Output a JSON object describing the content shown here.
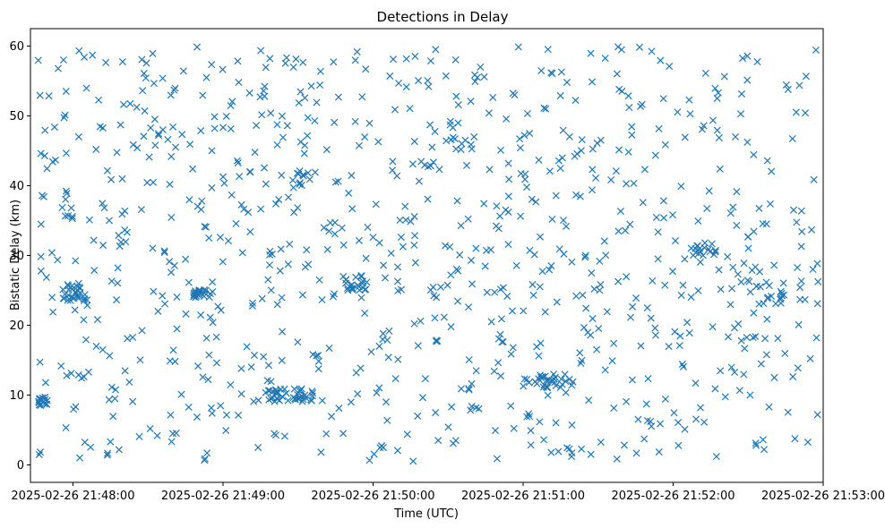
{
  "chart_data": {
    "type": "scatter",
    "title": "Detections in Delay",
    "xlabel": "Time (UTC)",
    "ylabel": "Bistatic Delay (km)",
    "marker": "x",
    "color": "#1f77b4",
    "x_unit": "seconds since 2025-02-26 21:48:00 UTC",
    "xlim": [
      -17,
      300
    ],
    "ylim": [
      -2.5,
      62.5
    ],
    "x_ticks": [
      {
        "value": 0,
        "label": "2025-02-26 21:48:00"
      },
      {
        "value": 60,
        "label": "2025-02-26 21:49:00"
      },
      {
        "value": 120,
        "label": "2025-02-26 21:50:00"
      },
      {
        "value": 180,
        "label": "2025-02-26 21:51:00"
      },
      {
        "value": 240,
        "label": "2025-02-26 21:52:00"
      },
      {
        "value": 300,
        "label": "2025-02-26 21:53:00"
      }
    ],
    "y_ticks": [
      {
        "value": 0,
        "label": "0"
      },
      {
        "value": 10,
        "label": "10"
      },
      {
        "value": 20,
        "label": "20"
      },
      {
        "value": 30,
        "label": "30"
      },
      {
        "value": 40,
        "label": "40"
      },
      {
        "value": 50,
        "label": "50"
      },
      {
        "value": 60,
        "label": "60"
      }
    ],
    "x_range_data": [
      -15,
      298
    ],
    "y_range_data": [
      0.5,
      60
    ],
    "num_points": 1100,
    "clusters": [
      {
        "x": [
          -14,
          -10
        ],
        "y": [
          8.5,
          9.8
        ],
        "n": 14
      },
      {
        "x": [
          -4,
          6
        ],
        "y": [
          23.5,
          26
        ],
        "n": 30
      },
      {
        "x": [
          48,
          56
        ],
        "y": [
          24,
          25.2
        ],
        "n": 20
      },
      {
        "x": [
          78,
          96
        ],
        "y": [
          9,
          11
        ],
        "n": 40
      },
      {
        "x": [
          108,
          118
        ],
        "y": [
          25,
          27
        ],
        "n": 22
      },
      {
        "x": [
          180,
          200
        ],
        "y": [
          11,
          13
        ],
        "n": 30
      },
      {
        "x": [
          270,
          285
        ],
        "y": [
          23,
          27
        ],
        "n": 18
      },
      {
        "x": [
          246,
          258
        ],
        "y": [
          30,
          32
        ],
        "n": 16
      },
      {
        "x": [
          86,
          96
        ],
        "y": [
          40,
          42
        ],
        "n": 10
      },
      {
        "x": [
          150,
          162
        ],
        "y": [
          45,
          47
        ],
        "n": 10
      }
    ]
  }
}
